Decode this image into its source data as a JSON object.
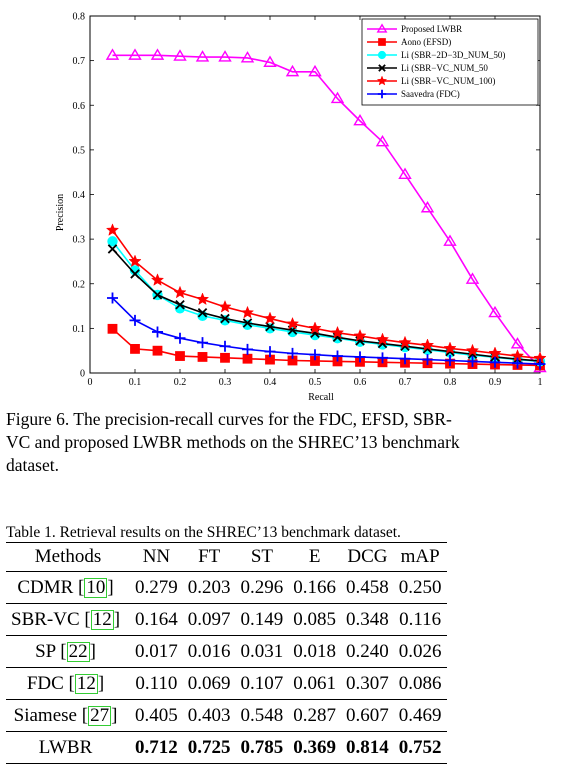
{
  "chart_data": {
    "type": "line",
    "xlabel": "Recall",
    "ylabel": "Precision",
    "xlim": [
      0,
      1
    ],
    "ylim": [
      0,
      0.8
    ],
    "xticks": [
      "0",
      "0.1",
      "0.2",
      "0.3",
      "0.4",
      "0.5",
      "0.6",
      "0.7",
      "0.8",
      "0.9",
      "1"
    ],
    "yticks": [
      "0",
      "0.1",
      "0.2",
      "0.3",
      "0.4",
      "0.5",
      "0.6",
      "0.7",
      "0.8"
    ],
    "grid": false,
    "legend_position": "top-right",
    "x": [
      0.05,
      0.1,
      0.15,
      0.2,
      0.25,
      0.3,
      0.35,
      0.4,
      0.45,
      0.5,
      0.55,
      0.6,
      0.65,
      0.7,
      0.75,
      0.8,
      0.85,
      0.9,
      0.95,
      1.0
    ],
    "series": [
      {
        "name": "Proposed LWBR",
        "color": "#ff00ff",
        "marker": "triangle",
        "values": [
          0.712,
          0.712,
          0.712,
          0.71,
          0.708,
          0.708,
          0.706,
          0.696,
          0.675,
          0.675,
          0.615,
          0.565,
          0.518,
          0.445,
          0.37,
          0.295,
          0.21,
          0.135,
          0.065,
          0.012
        ]
      },
      {
        "name": "Aono (EFSD)",
        "color": "#ff0000",
        "marker": "square",
        "values": [
          0.099,
          0.054,
          0.05,
          0.038,
          0.036,
          0.034,
          0.032,
          0.03,
          0.028,
          0.027,
          0.026,
          0.025,
          0.024,
          0.023,
          0.022,
          0.021,
          0.02,
          0.019,
          0.018,
          0.017
        ]
      },
      {
        "name": "Li (SBR−2D−3D_NUM_50)",
        "color": "#00ffff",
        "marker": "circle",
        "values": [
          0.295,
          0.23,
          0.175,
          0.145,
          0.128,
          0.118,
          0.108,
          0.1,
          0.092,
          0.085,
          0.078,
          0.07,
          0.064,
          0.058,
          0.052,
          0.046,
          0.04,
          0.035,
          0.03,
          0.026
        ]
      },
      {
        "name": "Li (SBR−VC_NUM_50",
        "color": "#000000",
        "marker": "x",
        "values": [
          0.278,
          0.222,
          0.175,
          0.153,
          0.135,
          0.122,
          0.112,
          0.104,
          0.096,
          0.089,
          0.08,
          0.072,
          0.066,
          0.06,
          0.054,
          0.048,
          0.042,
          0.036,
          0.031,
          0.027
        ]
      },
      {
        "name": "Li (SBR−VC_NUM_100)",
        "color": "#ff0000",
        "marker": "star",
        "values": [
          0.32,
          0.25,
          0.208,
          0.18,
          0.165,
          0.148,
          0.135,
          0.122,
          0.11,
          0.1,
          0.09,
          0.083,
          0.075,
          0.068,
          0.062,
          0.055,
          0.05,
          0.044,
          0.038,
          0.033
        ]
      },
      {
        "name": "Saavedra (FDC)",
        "color": "#0000ff",
        "marker": "plus",
        "values": [
          0.168,
          0.118,
          0.092,
          0.078,
          0.068,
          0.06,
          0.053,
          0.048,
          0.044,
          0.041,
          0.038,
          0.036,
          0.034,
          0.032,
          0.03,
          0.028,
          0.026,
          0.024,
          0.022,
          0.02
        ]
      }
    ]
  },
  "figure_caption": {
    "line1": "Figure 6. The precision-recall curves for the FDC, EFSD, SBR-",
    "line2": "VC and proposed LWBR methods on the SHREC’13 benchmark",
    "line3": "dataset."
  },
  "table": {
    "caption": "Table 1. Retrieval results on the SHREC’13 benchmark dataset.",
    "headers": [
      "Methods",
      "NN",
      "FT",
      "ST",
      "E",
      "DCG",
      "mAP"
    ],
    "rows": [
      {
        "method": "CDMR",
        "ref": "10",
        "values": [
          "0.279",
          "0.203",
          "0.296",
          "0.166",
          "0.458",
          "0.250"
        ]
      },
      {
        "method": "SBR-VC",
        "ref": "12",
        "values": [
          "0.164",
          "0.097",
          "0.149",
          "0.085",
          "0.348",
          "0.116"
        ]
      },
      {
        "method": "SP",
        "ref": "22",
        "values": [
          "0.017",
          "0.016",
          "0.031",
          "0.018",
          "0.240",
          "0.026"
        ]
      },
      {
        "method": "FDC",
        "ref": "12",
        "values": [
          "0.110",
          "0.069",
          "0.107",
          "0.061",
          "0.307",
          "0.086"
        ]
      },
      {
        "method": "Siamese",
        "ref": "27",
        "values": [
          "0.405",
          "0.403",
          "0.548",
          "0.287",
          "0.607",
          "0.469"
        ]
      },
      {
        "method": "LWBR",
        "ref": "",
        "values": [
          "0.712",
          "0.725",
          "0.785",
          "0.369",
          "0.814",
          "0.752"
        ]
      }
    ]
  }
}
